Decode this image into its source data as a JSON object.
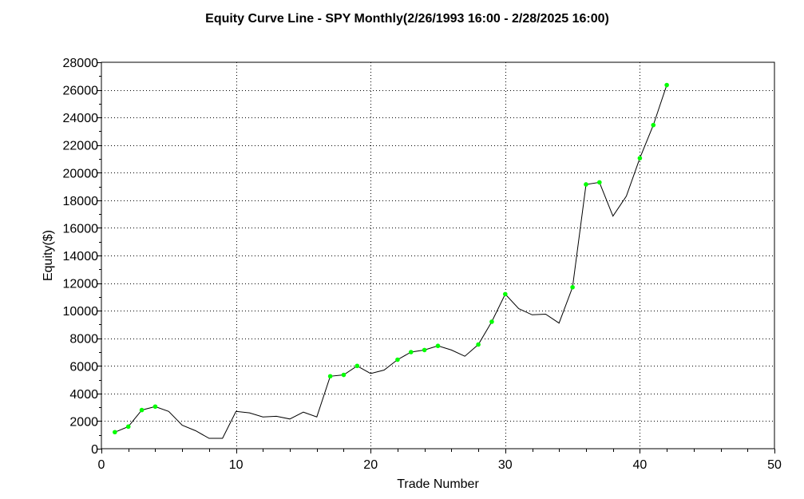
{
  "chart_data": {
    "type": "line",
    "title": "Equity Curve Line - SPY Monthly(2/26/1993 16:00 - 2/28/2025 16:00)",
    "xlabel": "Trade Number",
    "ylabel": "Equity($)",
    "xlim": [
      0,
      50
    ],
    "ylim": [
      0,
      28000
    ],
    "xticks": [
      0,
      10,
      20,
      30,
      40,
      50
    ],
    "yticks": [
      0,
      2000,
      4000,
      6000,
      8000,
      10000,
      12000,
      14000,
      16000,
      18000,
      20000,
      22000,
      24000,
      26000,
      28000
    ],
    "grid": true,
    "line_color": "#000000",
    "marker_color": "#00ff00",
    "series": [
      {
        "x": [
          1,
          2,
          3,
          4,
          5,
          6,
          7,
          8,
          9,
          10,
          11,
          12,
          13,
          14,
          15,
          16,
          17,
          18,
          19,
          20,
          21,
          22,
          23,
          24,
          25,
          26,
          27,
          28,
          29,
          30,
          31,
          32,
          33,
          34,
          35,
          36,
          37,
          38,
          39,
          40,
          41,
          42
        ],
        "values": [
          1200,
          1600,
          2800,
          3050,
          2700,
          1700,
          1300,
          750,
          750,
          2700,
          2600,
          2300,
          2350,
          2150,
          2650,
          2300,
          5250,
          5350,
          6000,
          5450,
          5700,
          6450,
          7000,
          7150,
          7450,
          7150,
          6700,
          7550,
          9200,
          11200,
          10150,
          9700,
          9750,
          9100,
          11700,
          19150,
          19300,
          16850,
          18300,
          21050,
          23450,
          26350
        ],
        "markers": [
          1,
          2,
          3,
          4,
          17,
          18,
          19,
          22,
          23,
          24,
          25,
          28,
          29,
          30,
          35,
          36,
          37,
          40,
          41,
          42
        ]
      }
    ]
  }
}
